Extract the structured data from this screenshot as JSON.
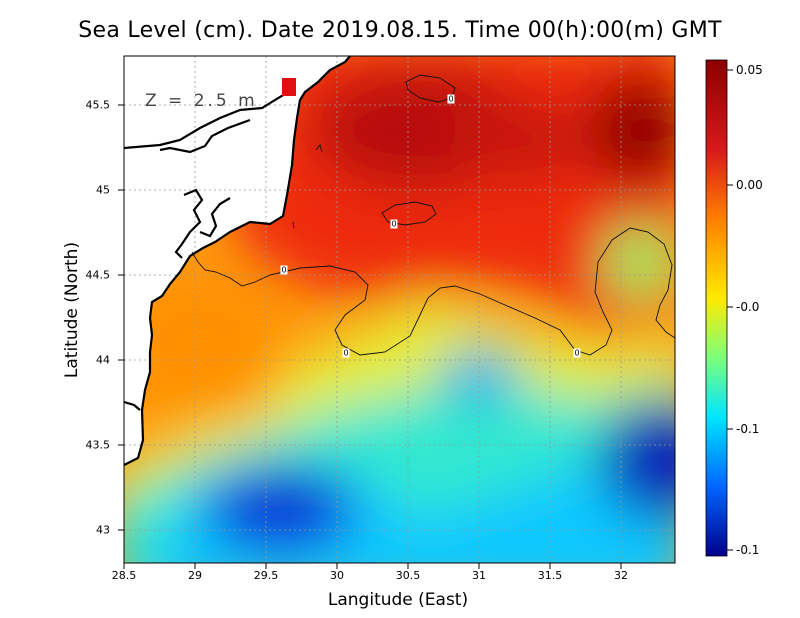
{
  "title": "Sea Level (cm). Date 2019.08.15. Time 00(h):00(m) GMT",
  "depth_label": "Z = 2.5 m",
  "axes": {
    "xlabel": "Langitude (East)",
    "ylabel": "Latitude (North)",
    "xticks": [
      "28.5",
      "29",
      "29.5",
      "30",
      "30.5",
      "31",
      "31.5",
      "32"
    ],
    "yticks": [
      "45.5",
      "45",
      "44.5",
      "44",
      "43.5",
      "43"
    ],
    "xlim": [
      28.5,
      32.4
    ],
    "ylim": [
      42.8,
      45.8
    ]
  },
  "colorbar": {
    "ticks": [
      "0.05",
      "0.00",
      "-0.0",
      "-0.1",
      "-0.1"
    ],
    "colors": [
      "#8b0000",
      "#e31a0a",
      "#ff8c00",
      "#ffe600",
      "#7dff7a",
      "#00e5ff",
      "#0066ff",
      "#00008b"
    ]
  },
  "contour_labels": [
    "0",
    "0",
    "0",
    "0",
    "0"
  ],
  "map_features": [
    "sea-level-field",
    "coastline",
    "zero-contour",
    "grid"
  ]
}
